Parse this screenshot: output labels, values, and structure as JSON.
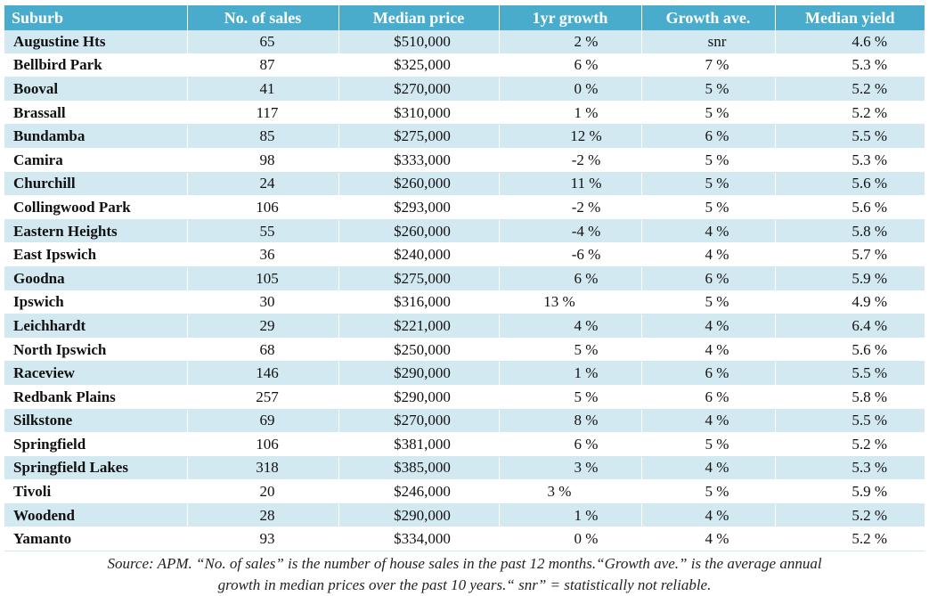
{
  "table": {
    "headers": [
      "Suburb",
      "No. of sales",
      "Median price",
      "1yr growth",
      "Growth ave.",
      "Median yield"
    ],
    "rows": [
      [
        "Augustine Hts",
        "65",
        "$510,000",
        "2 %",
        "snr",
        "4.6 %"
      ],
      [
        "Bellbird Park",
        "87",
        "$325,000",
        "6 %",
        "7 %",
        "5.3 %"
      ],
      [
        "Booval",
        "41",
        "$270,000",
        "0 %",
        "5 %",
        "5.2 %"
      ],
      [
        "Brassall",
        "117",
        "$310,000",
        "1 %",
        "5 %",
        "5.2 %"
      ],
      [
        "Bundamba",
        "85",
        "$275,000",
        "12 %",
        "6 %",
        "5.5 %"
      ],
      [
        "Camira",
        "98",
        "$333,000",
        "-2 %",
        "5 %",
        "5.3 %"
      ],
      [
        "Churchill",
        "24",
        "$260,000",
        "11 %",
        "5 %",
        "5.6 %"
      ],
      [
        "Collingwood Park",
        "106",
        "$293,000",
        "-2 %",
        "5 %",
        "5.6 %"
      ],
      [
        "Eastern Heights",
        "55",
        "$260,000",
        "-4 %",
        "4 %",
        "5.8 %"
      ],
      [
        "East Ipswich",
        "36",
        "$240,000",
        "-6 %",
        "4 %",
        "5.7 %"
      ],
      [
        "Goodna",
        "105",
        "$275,000",
        "6 %",
        "6 %",
        "5.9 %"
      ],
      [
        "Ipswich",
        "30",
        "$316,000",
        "13 %",
        "5 %",
        "4.9 %"
      ],
      [
        "Leichhardt",
        "29",
        "$221,000",
        "4 %",
        "4 %",
        "6.4 %"
      ],
      [
        "North Ipswich",
        "68",
        "$250,000",
        "5 %",
        "4 %",
        "5.6 %"
      ],
      [
        "Raceview",
        "146",
        "$290,000",
        "1 %",
        "6 %",
        "5.5 %"
      ],
      [
        "Redbank Plains",
        "257",
        "$290,000",
        "5 %",
        "6 %",
        "5.8 %"
      ],
      [
        "Silkstone",
        "69",
        "$270,000",
        "8 %",
        "4 %",
        "5.5 %"
      ],
      [
        "Springfield",
        "106",
        "$381,000",
        "6 %",
        "5 %",
        "5.2 %"
      ],
      [
        "Springfield Lakes",
        "318",
        "$385,000",
        "3 %",
        "4 %",
        "5.3 %"
      ],
      [
        "Tivoli",
        "20",
        "$246,000",
        "3 %",
        "5 %",
        "5.9 %"
      ],
      [
        "Woodend",
        "28",
        "$290,000",
        "1 %",
        "4 %",
        "5.2 %"
      ],
      [
        "Yamanto",
        "93",
        "$334,000",
        "0 %",
        "4 %",
        "5.2 %"
      ]
    ]
  },
  "caption": {
    "line1": "Source: APM. “No. of sales” is the number of house sales in the past 12 months.“Growth ave.” is the average annual",
    "line2": "growth in median prices over the past 10 years.“ snr” = statistically not reliable."
  },
  "colors": {
    "header_bg": "#4aaccc",
    "header_text": "#ffffff",
    "stripe": "#d3e9f1"
  }
}
